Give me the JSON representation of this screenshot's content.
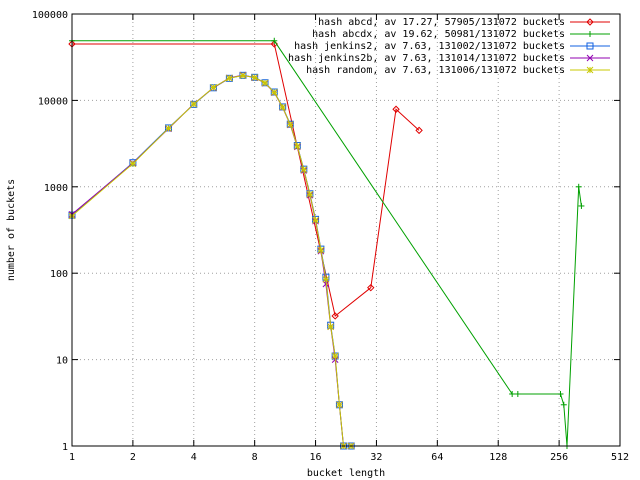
{
  "chart_data": {
    "type": "line",
    "title": "",
    "xlabel": "bucket length",
    "ylabel": "number of buckets",
    "x_scale": "log2",
    "y_scale": "log10",
    "xlim": [
      1,
      512
    ],
    "ylim": [
      1,
      100000
    ],
    "x_ticks": [
      1,
      2,
      4,
      8,
      16,
      32,
      64,
      128,
      256,
      512
    ],
    "x_tick_labels": [
      "1",
      "2",
      "4",
      "8",
      "16",
      "32",
      "64",
      "128",
      "256",
      "512"
    ],
    "y_ticks": [
      1,
      10,
      100,
      1000,
      10000,
      100000
    ],
    "y_tick_labels": [
      "1",
      "10",
      "100",
      "1000",
      "10000",
      "100000"
    ],
    "grid": true,
    "legend_position": "top-right",
    "series": [
      {
        "name": "hash abcd, av 17.27, 57905/131072 buckets",
        "color": "#e00000",
        "marker": "diamond",
        "points": [
          [
            1,
            45000
          ],
          [
            10,
            45000
          ],
          [
            20,
            32
          ],
          [
            30,
            68
          ],
          [
            40,
            7900
          ],
          [
            52,
            4500
          ]
        ]
      },
      {
        "name": "hash abcdx, av 19.62, 50981/131072 buckets",
        "color": "#00a000",
        "marker": "plus",
        "points": [
          [
            1,
            49000
          ],
          [
            10,
            49000
          ],
          [
            150,
            4
          ],
          [
            160,
            4
          ],
          [
            260,
            4
          ],
          [
            270,
            3
          ],
          [
            280,
            1
          ],
          [
            320,
            1000
          ],
          [
            330,
            600
          ]
        ]
      },
      {
        "name": "hash jenkins2, av 7.63, 131002/131072 buckets",
        "color": "#1060e0",
        "marker": "square",
        "points": [
          [
            1,
            470
          ],
          [
            2,
            1900
          ],
          [
            3,
            4800
          ],
          [
            4,
            9000
          ],
          [
            5,
            14000
          ],
          [
            6,
            18000
          ],
          [
            7,
            19500
          ],
          [
            8,
            18500
          ],
          [
            9,
            16000
          ],
          [
            10,
            12500
          ],
          [
            11,
            8400
          ],
          [
            12,
            5300
          ],
          [
            13,
            3000
          ],
          [
            14,
            1600
          ],
          [
            15,
            830
          ],
          [
            16,
            420
          ],
          [
            17,
            190
          ],
          [
            18,
            90
          ],
          [
            19,
            25
          ],
          [
            20,
            11
          ],
          [
            21,
            3
          ],
          [
            22,
            1
          ],
          [
            24,
            1
          ]
        ]
      },
      {
        "name": "hash jenkins2b, av 7.63, 131014/131072 buckets",
        "color": "#9000b0",
        "marker": "cross",
        "points": [
          [
            1,
            480
          ],
          [
            2,
            1880
          ],
          [
            3,
            4700
          ],
          [
            4,
            9100
          ],
          [
            5,
            14000
          ],
          [
            6,
            18200
          ],
          [
            7,
            19600
          ],
          [
            8,
            18300
          ],
          [
            9,
            15800
          ],
          [
            10,
            12300
          ],
          [
            11,
            8300
          ],
          [
            12,
            5200
          ],
          [
            13,
            2900
          ],
          [
            14,
            1550
          ],
          [
            15,
            800
          ],
          [
            16,
            400
          ],
          [
            17,
            180
          ],
          [
            18,
            75
          ],
          [
            19,
            24
          ],
          [
            20,
            10
          ],
          [
            21,
            3
          ],
          [
            22,
            1
          ],
          [
            24,
            1
          ]
        ]
      },
      {
        "name": "hash random, av 7.63, 131006/131072 buckets",
        "color": "#c8c800",
        "marker": "star",
        "points": [
          [
            1,
            460
          ],
          [
            2,
            1850
          ],
          [
            3,
            4750
          ],
          [
            4,
            9050
          ],
          [
            5,
            14100
          ],
          [
            6,
            18100
          ],
          [
            7,
            19400
          ],
          [
            8,
            18400
          ],
          [
            9,
            15900
          ],
          [
            10,
            12400
          ],
          [
            11,
            8350
          ],
          [
            12,
            5250
          ],
          [
            13,
            2950
          ],
          [
            14,
            1580
          ],
          [
            15,
            820
          ],
          [
            16,
            410
          ],
          [
            17,
            185
          ],
          [
            18,
            85
          ],
          [
            19,
            24
          ],
          [
            20,
            11
          ],
          [
            21,
            3
          ],
          [
            22,
            1
          ],
          [
            24,
            1
          ]
        ]
      }
    ]
  }
}
